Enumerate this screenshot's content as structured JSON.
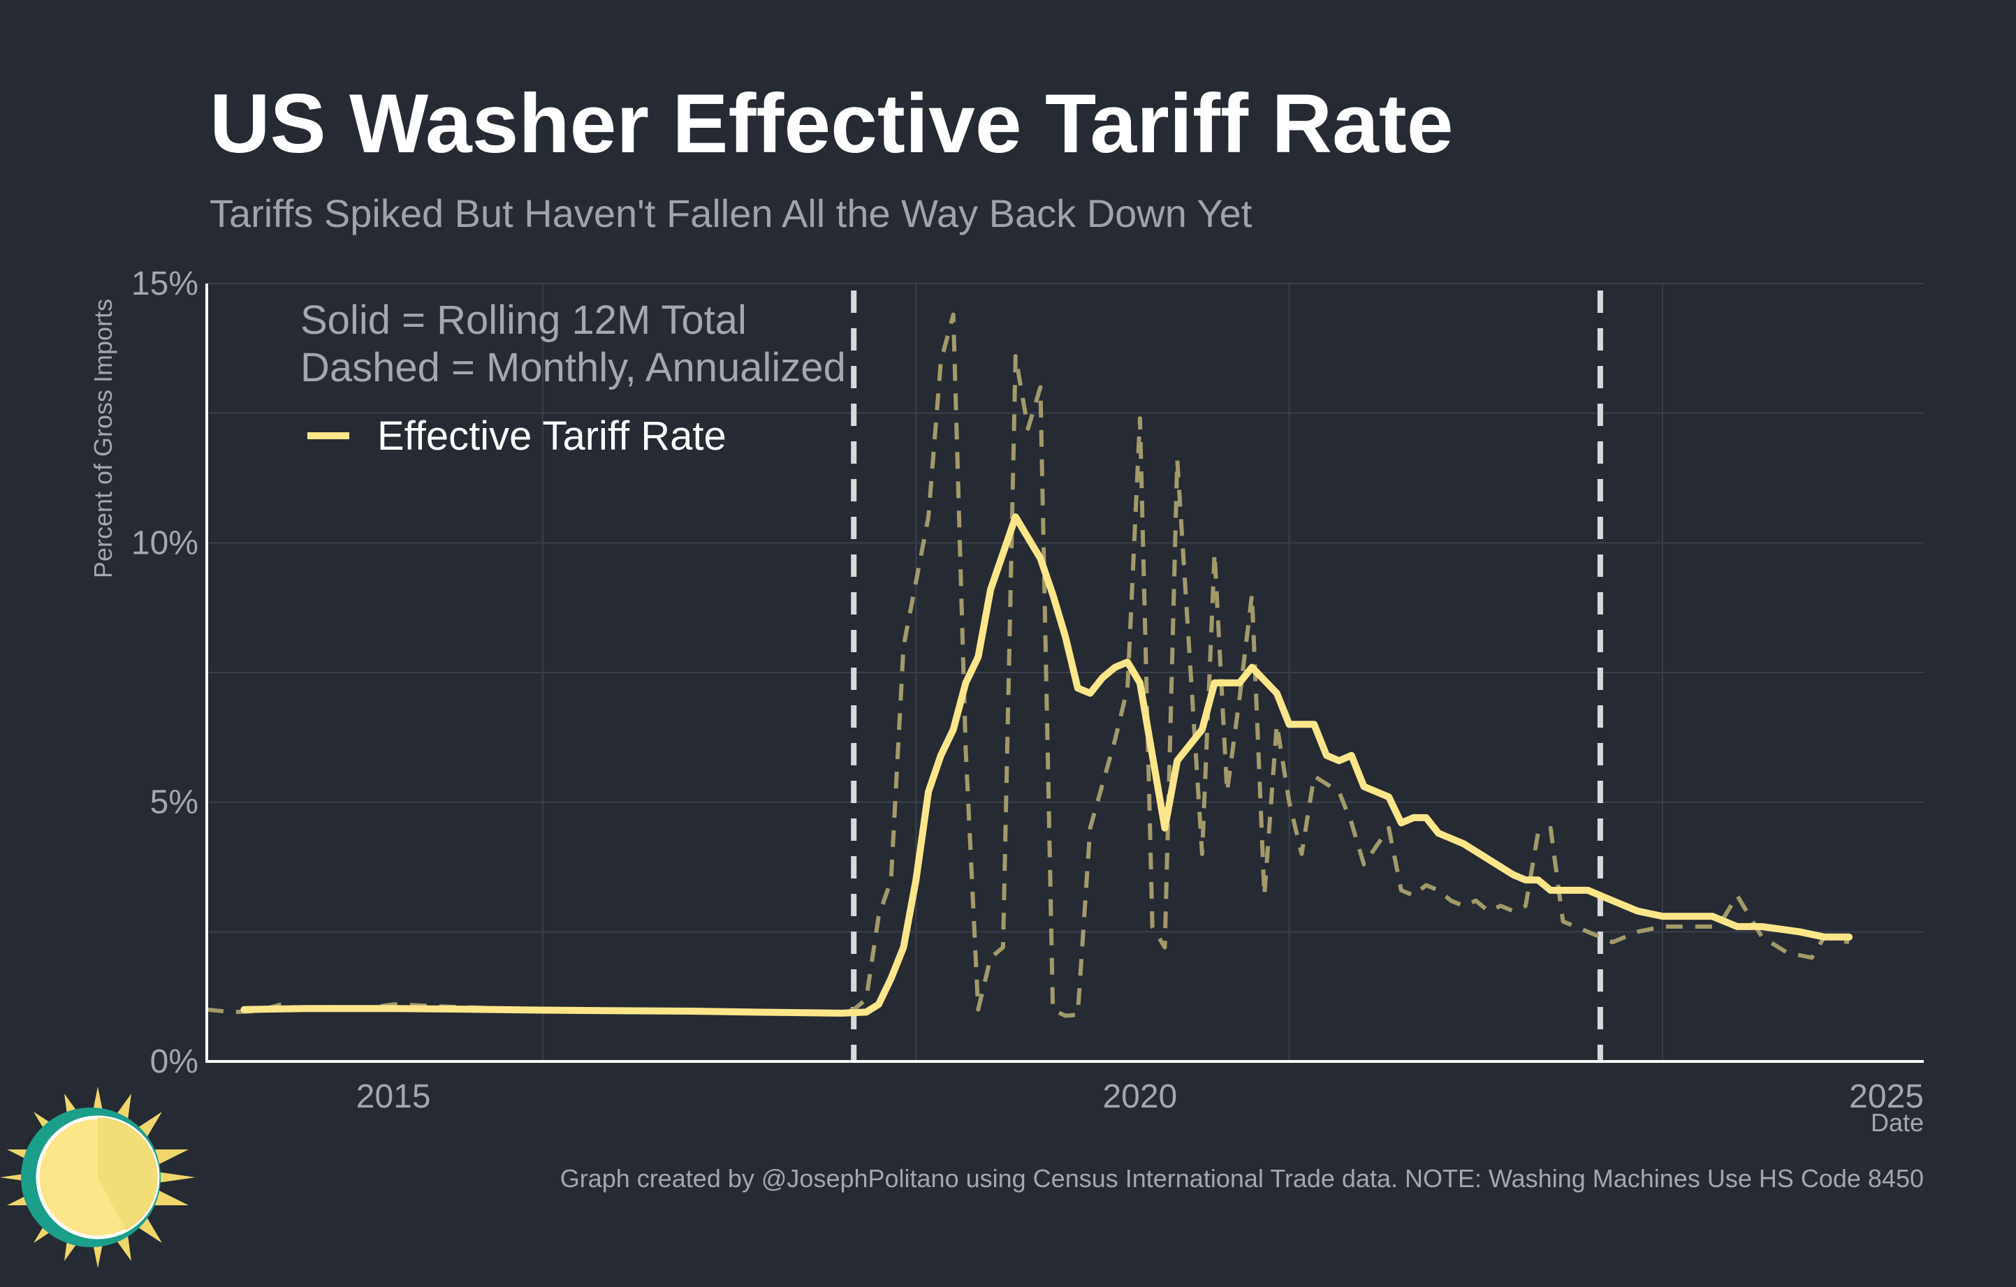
{
  "chart_data": {
    "type": "line",
    "title": "US Washer Effective Tariff Rate",
    "subtitle": "Tariffs Spiked But Haven't Fallen All the Way Back Down Yet",
    "xlabel": "Date",
    "ylabel": "Percent of Gross Imports",
    "x_range": [
      "2013-10",
      "2025-04"
    ],
    "ylim": [
      0,
      15
    ],
    "x_ticks": [
      {
        "value": "2015-01",
        "label": "2015"
      },
      {
        "value": "2020-01",
        "label": "2020"
      },
      {
        "value": "2025-01",
        "label": "2025"
      }
    ],
    "y_ticks": [
      {
        "value": 0,
        "label": "0%"
      },
      {
        "value": 5,
        "label": "5%"
      },
      {
        "value": 10,
        "label": "10%"
      },
      {
        "value": 15,
        "label": "15%"
      }
    ],
    "grid": true,
    "note_lines": [
      "Solid = Rolling 12M Total",
      "Dashed = Monthly, Annualized"
    ],
    "legend": {
      "position": "top-left",
      "entries": [
        "Effective Tariff Rate"
      ]
    },
    "vertical_markers": [
      "2018-02",
      "2023-02"
    ],
    "series": [
      {
        "name": "Effective Tariff Rate",
        "style": "solid",
        "color": "#fde68a",
        "points": [
          [
            "2014-01",
            1.0
          ],
          [
            "2014-06",
            1.02
          ],
          [
            "2015-01",
            1.02
          ],
          [
            "2015-06",
            1.01
          ],
          [
            "2016-01",
            0.99
          ],
          [
            "2016-06",
            0.98
          ],
          [
            "2017-01",
            0.97
          ],
          [
            "2017-06",
            0.95
          ],
          [
            "2018-01",
            0.93
          ],
          [
            "2018-03",
            0.95
          ],
          [
            "2018-04",
            1.1
          ],
          [
            "2018-05",
            1.6
          ],
          [
            "2018-06",
            2.2
          ],
          [
            "2018-07",
            3.5
          ],
          [
            "2018-08",
            5.2
          ],
          [
            "2018-09",
            5.9
          ],
          [
            "2018-10",
            6.4
          ],
          [
            "2018-11",
            7.3
          ],
          [
            "2018-12",
            7.8
          ],
          [
            "2019-01",
            9.1
          ],
          [
            "2019-03",
            10.5
          ],
          [
            "2019-05",
            9.7
          ],
          [
            "2019-06",
            9.0
          ],
          [
            "2019-07",
            8.2
          ],
          [
            "2019-08",
            7.2
          ],
          [
            "2019-09",
            7.1
          ],
          [
            "2019-10",
            7.4
          ],
          [
            "2019-11",
            7.6
          ],
          [
            "2019-12",
            7.7
          ],
          [
            "2020-01",
            7.3
          ],
          [
            "2020-03",
            4.5
          ],
          [
            "2020-04",
            5.8
          ],
          [
            "2020-06",
            6.4
          ],
          [
            "2020-07",
            7.3
          ],
          [
            "2020-09",
            7.3
          ],
          [
            "2020-10",
            7.6
          ],
          [
            "2020-12",
            7.1
          ],
          [
            "2021-01",
            6.5
          ],
          [
            "2021-03",
            6.5
          ],
          [
            "2021-04",
            5.9
          ],
          [
            "2021-05",
            5.8
          ],
          [
            "2021-06",
            5.9
          ],
          [
            "2021-07",
            5.3
          ],
          [
            "2021-09",
            5.1
          ],
          [
            "2021-10",
            4.6
          ],
          [
            "2021-11",
            4.7
          ],
          [
            "2021-12",
            4.7
          ],
          [
            "2022-01",
            4.4
          ],
          [
            "2022-02",
            4.3
          ],
          [
            "2022-03",
            4.2
          ],
          [
            "2022-05",
            3.9
          ],
          [
            "2022-07",
            3.6
          ],
          [
            "2022-08",
            3.5
          ],
          [
            "2022-09",
            3.5
          ],
          [
            "2022-10",
            3.3
          ],
          [
            "2022-11",
            3.3
          ],
          [
            "2023-01",
            3.3
          ],
          [
            "2023-03",
            3.1
          ],
          [
            "2023-05",
            2.9
          ],
          [
            "2023-07",
            2.8
          ],
          [
            "2023-09",
            2.8
          ],
          [
            "2023-11",
            2.8
          ],
          [
            "2024-01",
            2.6
          ],
          [
            "2024-03",
            2.6
          ],
          [
            "2024-06",
            2.5
          ],
          [
            "2024-08",
            2.4
          ],
          [
            "2024-10",
            2.4
          ]
        ]
      },
      {
        "name": "",
        "style": "dashed",
        "color": "#a39a6a",
        "points": [
          [
            "2013-10",
            1.0
          ],
          [
            "2013-12",
            0.95
          ],
          [
            "2014-02",
            0.97
          ],
          [
            "2014-04",
            1.1
          ],
          [
            "2014-06",
            1.0
          ],
          [
            "2014-08",
            1.05
          ],
          [
            "2014-10",
            1.0
          ],
          [
            "2015-01",
            1.1
          ],
          [
            "2015-06",
            1.05
          ],
          [
            "2016-01",
            1.0
          ],
          [
            "2016-06",
            0.98
          ],
          [
            "2017-01",
            0.97
          ],
          [
            "2017-06",
            0.95
          ],
          [
            "2018-01",
            0.92
          ],
          [
            "2018-02",
            1.0
          ],
          [
            "2018-03",
            1.2
          ],
          [
            "2018-04",
            2.8
          ],
          [
            "2018-05",
            3.5
          ],
          [
            "2018-06",
            8.0
          ],
          [
            "2018-08",
            10.5
          ],
          [
            "2018-09",
            13.5
          ],
          [
            "2018-10",
            14.4
          ],
          [
            "2018-11",
            6.0
          ],
          [
            "2018-12",
            1.0
          ],
          [
            "2019-01",
            2.0
          ],
          [
            "2019-02",
            2.2
          ],
          [
            "2019-03",
            13.6
          ],
          [
            "2019-04",
            12.2
          ],
          [
            "2019-05",
            13.0
          ],
          [
            "2019-06",
            1.0
          ],
          [
            "2019-07",
            0.88
          ],
          [
            "2019-08",
            0.9
          ],
          [
            "2019-09",
            4.5
          ],
          [
            "2019-11",
            6.2
          ],
          [
            "2019-12",
            7.2
          ],
          [
            "2020-01",
            12.4
          ],
          [
            "2020-02",
            2.6
          ],
          [
            "2020-03",
            2.2
          ],
          [
            "2020-04",
            11.6
          ],
          [
            "2020-06",
            4.0
          ],
          [
            "2020-07",
            9.8
          ],
          [
            "2020-08",
            5.2
          ],
          [
            "2020-09",
            7.0
          ],
          [
            "2020-10",
            9.0
          ],
          [
            "2020-11",
            3.2
          ],
          [
            "2020-12",
            6.5
          ],
          [
            "2021-01",
            5.0
          ],
          [
            "2021-02",
            4.0
          ],
          [
            "2021-03",
            5.5
          ],
          [
            "2021-05",
            5.2
          ],
          [
            "2021-06",
            4.6
          ],
          [
            "2021-07",
            3.8
          ],
          [
            "2021-09",
            4.5
          ],
          [
            "2021-10",
            3.3
          ],
          [
            "2021-11",
            3.2
          ],
          [
            "2021-12",
            3.4
          ],
          [
            "2022-01",
            3.3
          ],
          [
            "2022-02",
            3.1
          ],
          [
            "2022-03",
            3.0
          ],
          [
            "2022-04",
            3.1
          ],
          [
            "2022-05",
            2.9
          ],
          [
            "2022-06",
            3.0
          ],
          [
            "2022-07",
            2.9
          ],
          [
            "2022-08",
            3.0
          ],
          [
            "2022-09",
            4.4
          ],
          [
            "2022-10",
            4.5
          ],
          [
            "2022-11",
            2.7
          ],
          [
            "2022-12",
            2.6
          ],
          [
            "2023-01",
            2.5
          ],
          [
            "2023-03",
            2.3
          ],
          [
            "2023-05",
            2.5
          ],
          [
            "2023-07",
            2.6
          ],
          [
            "2023-09",
            2.6
          ],
          [
            "2023-11",
            2.6
          ],
          [
            "2023-12",
            2.8
          ],
          [
            "2024-01",
            3.2
          ],
          [
            "2024-03",
            2.4
          ],
          [
            "2024-05",
            2.1
          ],
          [
            "2024-07",
            2.0
          ],
          [
            "2024-08",
            2.4
          ],
          [
            "2024-10",
            2.3
          ]
        ]
      }
    ],
    "caption": "Graph created by @JosephPolitano using Census International Trade data. NOTE: Washing Machines Use HS Code 8450"
  },
  "colors": {
    "background": "#252a33",
    "grid": "#3b404a",
    "axis": "#ffffff",
    "marker": "#d9d9d9",
    "sun_core": "#fde68a",
    "sun_ring": "#1b9e8a"
  },
  "logo": {
    "icon": "sun-icon"
  }
}
